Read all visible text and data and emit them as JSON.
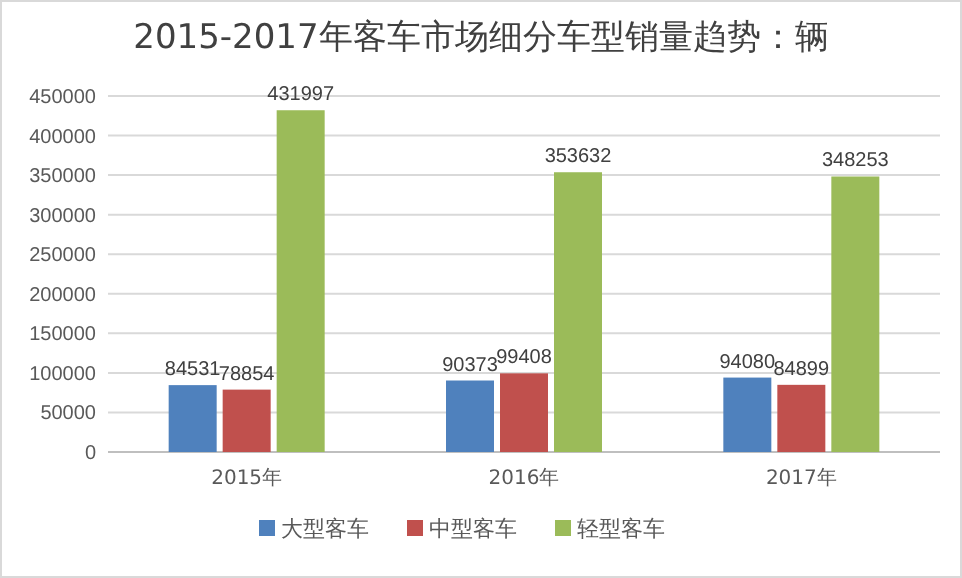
{
  "chart_data": {
    "type": "bar",
    "title": "2015-2017年客车市场细分车型销量趋势：辆",
    "categories": [
      "2015年",
      "2016年",
      "2017年"
    ],
    "series": [
      {
        "name": "大型客车",
        "color": "#4f81bd",
        "values": [
          84531,
          90373,
          94080
        ]
      },
      {
        "name": "中型客车",
        "color": "#c0504d",
        "values": [
          78854,
          99408,
          84899
        ]
      },
      {
        "name": "轻型客车",
        "color": "#9bbb59",
        "values": [
          431997,
          353632,
          348253
        ]
      }
    ],
    "ylim": [
      0,
      450000
    ],
    "yticks": [
      0,
      50000,
      100000,
      150000,
      200000,
      250000,
      300000,
      350000,
      400000,
      450000
    ],
    "grid": "y",
    "legend": "bottom",
    "data_labels": true
  }
}
